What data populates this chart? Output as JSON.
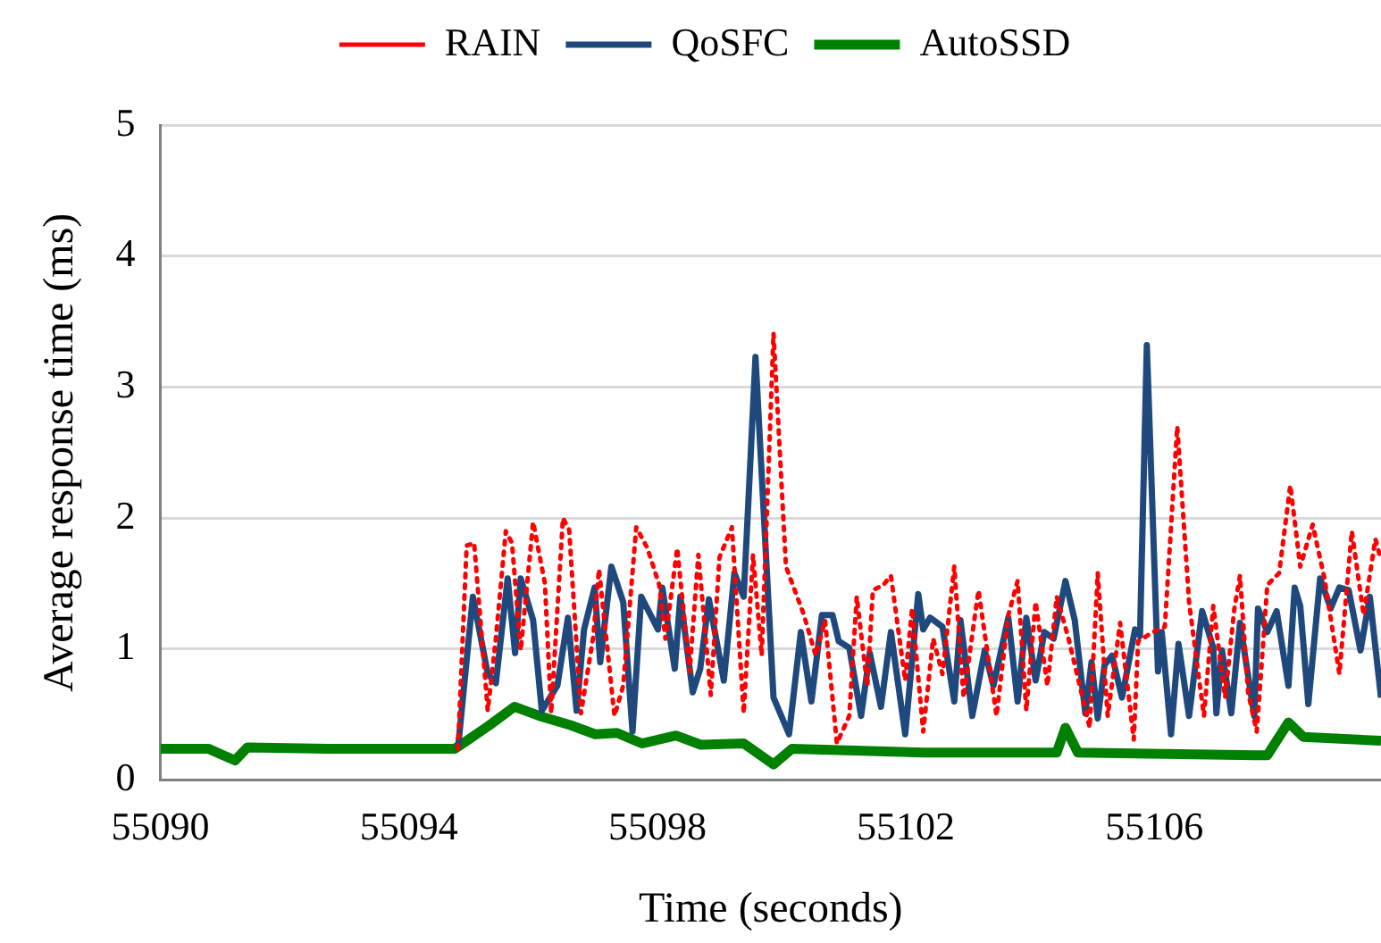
{
  "chart_data": {
    "type": "line",
    "xlabel": "Time (seconds)",
    "ylabel": "Average response time (ms)",
    "xlim": [
      55090,
      55109.65
    ],
    "xticks": [
      55090,
      55094,
      55098,
      55102,
      55106
    ],
    "ylim": [
      0,
      5
    ],
    "yticks": [
      0,
      1,
      2,
      3,
      4,
      5
    ],
    "grid": "y",
    "legend": "top",
    "marker": "none",
    "series": [
      {
        "name": "RAIN",
        "color": "#ff0000",
        "line_style": "dotted",
        "x": [
          55094.79,
          55094.93,
          55095.05,
          55095.27,
          55095.4,
          55095.56,
          55095.66,
          55095.8,
          55096.0,
          55096.19,
          55096.29,
          55096.48,
          55096.58,
          55096.77,
          55096.97,
          55097.06,
          55097.31,
          55097.45,
          55097.66,
          55097.84,
          55098.03,
          55098.13,
          55098.32,
          55098.52,
          55098.66,
          55098.86,
          55099.0,
          55099.2,
          55099.39,
          55099.54,
          55099.68,
          55099.87,
          55100.07,
          55100.36,
          55100.55,
          55100.7,
          55100.89,
          55101.09,
          55101.21,
          55101.38,
          55101.47,
          55101.64,
          55101.76,
          55101.99,
          55102.1,
          55102.28,
          55102.44,
          55102.59,
          55102.78,
          55102.93,
          55103.17,
          55103.46,
          55103.65,
          55103.8,
          55103.94,
          55104.09,
          55104.28,
          55104.43,
          55104.62,
          55104.96,
          55105.09,
          55105.25,
          55105.45,
          55105.67,
          55105.74,
          55105.98,
          55106.17,
          55106.37,
          55106.56,
          55106.71,
          55106.8,
          55106.95,
          55107.14,
          55107.29,
          55107.38,
          55107.51,
          55107.65,
          55107.82,
          55108.01,
          55108.19,
          55108.35,
          55108.55,
          55108.74,
          55108.98,
          55109.18,
          55109.37,
          55109.56,
          55109.65
        ],
        "values": [
          0.24,
          1.79,
          1.81,
          0.53,
          1.08,
          1.9,
          1.81,
          0.99,
          1.97,
          1.5,
          0.51,
          2.0,
          1.91,
          0.51,
          1.1,
          1.61,
          0.49,
          0.72,
          1.93,
          1.77,
          1.49,
          1.08,
          1.77,
          0.83,
          1.72,
          0.65,
          1.7,
          1.93,
          0.51,
          1.72,
          0.95,
          3.41,
          1.63,
          1.26,
          0.95,
          1.22,
          0.28,
          0.49,
          1.4,
          0.72,
          1.45,
          1.49,
          1.56,
          0.76,
          1.31,
          0.37,
          1.08,
          0.81,
          1.63,
          0.63,
          1.45,
          0.49,
          1.26,
          1.52,
          0.53,
          1.36,
          0.72,
          1.4,
          1.08,
          0.4,
          1.58,
          0.49,
          1.2,
          0.31,
          1.06,
          1.13,
          1.17,
          2.7,
          1.36,
          0.81,
          0.49,
          1.33,
          0.63,
          1.31,
          1.56,
          0.67,
          0.37,
          1.49,
          1.58,
          2.25,
          1.63,
          1.95,
          1.54,
          0.81,
          1.9,
          1.26,
          1.84,
          1.68
        ]
      },
      {
        "name": "QoSFC",
        "color": "#1f497d",
        "line_style": "solid",
        "x": [
          55094.79,
          55095.03,
          55095.27,
          55095.4,
          55095.59,
          55095.71,
          55095.8,
          55096.0,
          55096.14,
          55096.39,
          55096.56,
          55096.7,
          55096.82,
          55096.99,
          55097.08,
          55097.26,
          55097.45,
          55097.6,
          55097.74,
          55098.01,
          55098.08,
          55098.28,
          55098.37,
          55098.57,
          55098.69,
          55098.83,
          55099.07,
          55099.24,
          55099.39,
          55099.58,
          55099.87,
          55100.12,
          55100.31,
          55100.48,
          55100.65,
          55100.82,
          55100.92,
          55101.09,
          55101.28,
          55101.42,
          55101.6,
          55101.76,
          55101.99,
          55102.2,
          55102.28,
          55102.39,
          55102.59,
          55102.78,
          55102.88,
          55103.07,
          55103.27,
          55103.41,
          55103.65,
          55103.8,
          55103.94,
          55104.09,
          55104.23,
          55104.38,
          55104.57,
          55104.72,
          55104.89,
          55104.99,
          55105.09,
          55105.2,
          55105.32,
          55105.48,
          55105.69,
          55105.77,
          55105.88,
          55106.06,
          55106.12,
          55106.27,
          55106.39,
          55106.56,
          55106.77,
          55106.95,
          55107.0,
          55107.09,
          55107.24,
          55107.38,
          55107.61,
          55107.67,
          55107.82,
          55107.97,
          55108.16,
          55108.26,
          55108.35,
          55108.48,
          55108.67,
          55108.84,
          55108.98,
          55109.13,
          55109.32,
          55109.47,
          55109.65
        ],
        "values": [
          0.24,
          1.4,
          0.81,
          0.74,
          1.54,
          0.97,
          1.54,
          1.22,
          0.53,
          0.72,
          1.24,
          0.53,
          1.15,
          1.47,
          0.9,
          1.63,
          1.36,
          0.37,
          1.4,
          1.15,
          1.47,
          0.85,
          1.4,
          0.67,
          0.85,
          1.38,
          0.76,
          1.58,
          1.4,
          3.23,
          0.63,
          0.35,
          1.13,
          0.6,
          1.26,
          1.26,
          1.06,
          1.01,
          0.49,
          0.97,
          0.56,
          1.13,
          0.35,
          1.42,
          1.15,
          1.24,
          1.17,
          0.6,
          1.22,
          0.49,
          0.99,
          0.72,
          1.24,
          0.6,
          1.24,
          0.76,
          1.13,
          1.08,
          1.52,
          1.22,
          0.51,
          0.9,
          0.47,
          0.88,
          0.95,
          0.63,
          1.15,
          1.1,
          3.32,
          0.83,
          1.13,
          0.35,
          1.04,
          0.49,
          1.29,
          1.01,
          0.51,
          0.99,
          0.51,
          1.2,
          0.49,
          1.31,
          1.13,
          1.29,
          0.72,
          1.47,
          1.33,
          0.58,
          1.54,
          1.31,
          1.47,
          1.45,
          0.99,
          1.4,
          0.63
        ]
      },
      {
        "name": "AutoSSD",
        "color": "#008000",
        "line_style": "solid",
        "x": [
          55090.0,
          55090.77,
          55091.2,
          55091.4,
          55092.7,
          55094.74,
          55094.93,
          55095.3,
          55095.7,
          55096.1,
          55096.6,
          55097.0,
          55097.35,
          55097.75,
          55098.3,
          55098.7,
          55099.39,
          55099.87,
          55100.17,
          55102.3,
          55104.43,
          55104.57,
          55104.77,
          55107.63,
          55107.82,
          55108.16,
          55108.4,
          55109.65
        ],
        "values": [
          0.24,
          0.24,
          0.15,
          0.25,
          0.24,
          0.24,
          0.3,
          0.42,
          0.56,
          0.49,
          0.42,
          0.35,
          0.36,
          0.28,
          0.34,
          0.27,
          0.28,
          0.12,
          0.24,
          0.21,
          0.21,
          0.4,
          0.21,
          0.19,
          0.19,
          0.44,
          0.33,
          0.3
        ]
      }
    ]
  }
}
